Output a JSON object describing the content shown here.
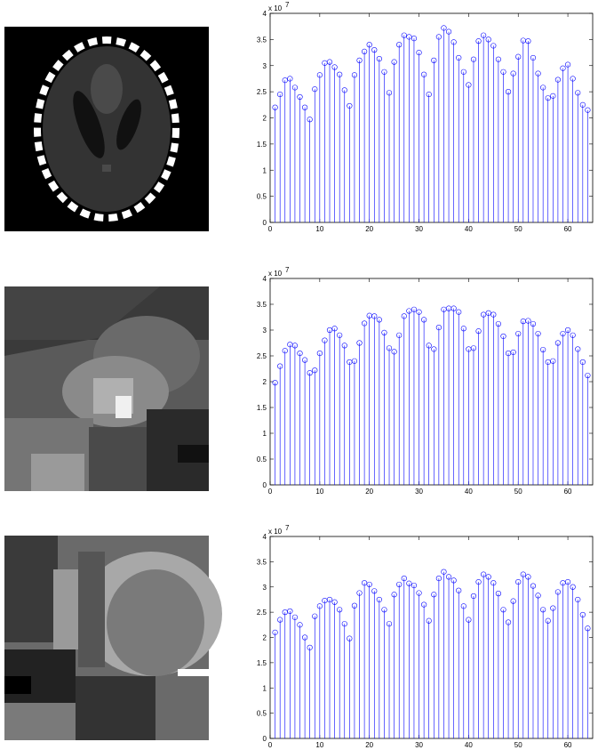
{
  "chart_data": [
    {
      "type": "stem",
      "y_scale_label": "x 10",
      "y_scale_exponent": "7",
      "color": "#0000ff",
      "x": [
        1,
        2,
        3,
        4,
        5,
        6,
        7,
        8,
        9,
        10,
        11,
        12,
        13,
        14,
        15,
        16,
        17,
        18,
        19,
        20,
        21,
        22,
        23,
        24,
        25,
        26,
        27,
        28,
        29,
        30,
        31,
        32,
        33,
        34,
        35,
        36,
        37,
        38,
        39,
        40,
        41,
        42,
        43,
        44,
        45,
        46,
        47,
        48,
        49,
        50,
        51,
        52,
        53,
        54,
        55,
        56,
        57,
        58,
        59,
        60,
        61,
        62,
        63,
        64
      ],
      "values": [
        2.2,
        2.45,
        2.72,
        2.75,
        2.58,
        2.4,
        2.2,
        1.97,
        2.55,
        2.82,
        3.05,
        3.07,
        2.97,
        2.83,
        2.53,
        2.23,
        2.82,
        3.1,
        3.27,
        3.4,
        3.3,
        3.13,
        2.88,
        2.48,
        3.07,
        3.4,
        3.58,
        3.55,
        3.52,
        3.25,
        2.83,
        2.45,
        3.1,
        3.55,
        3.72,
        3.65,
        3.45,
        3.15,
        2.88,
        2.63,
        3.12,
        3.47,
        3.58,
        3.5,
        3.38,
        3.12,
        2.88,
        2.5,
        2.85,
        3.17,
        3.48,
        3.47,
        3.15,
        2.85,
        2.58,
        2.38,
        2.42,
        2.73,
        2.95,
        3.02,
        2.75,
        2.48,
        2.25,
        2.15
      ],
      "xlim": [
        0,
        65
      ],
      "xticks": [
        0,
        10,
        20,
        30,
        40,
        50,
        60
      ],
      "ylim": [
        0,
        4
      ],
      "yticks": [
        0,
        0.5,
        1,
        1.5,
        2,
        2.5,
        3,
        3.5,
        4
      ]
    },
    {
      "type": "stem",
      "y_scale_label": "x 10",
      "y_scale_exponent": "7",
      "color": "#0000ff",
      "x": [
        1,
        2,
        3,
        4,
        5,
        6,
        7,
        8,
        9,
        10,
        11,
        12,
        13,
        14,
        15,
        16,
        17,
        18,
        19,
        20,
        21,
        22,
        23,
        24,
        25,
        26,
        27,
        28,
        29,
        30,
        31,
        32,
        33,
        34,
        35,
        36,
        37,
        38,
        39,
        40,
        41,
        42,
        43,
        44,
        45,
        46,
        47,
        48,
        49,
        50,
        51,
        52,
        53,
        54,
        55,
        56,
        57,
        58,
        59,
        60,
        61,
        62,
        63,
        64
      ],
      "values": [
        1.98,
        2.3,
        2.6,
        2.72,
        2.7,
        2.55,
        2.42,
        2.17,
        2.22,
        2.55,
        2.8,
        3.0,
        3.03,
        2.9,
        2.7,
        2.38,
        2.4,
        2.75,
        3.13,
        3.28,
        3.27,
        3.2,
        2.95,
        2.65,
        2.58,
        2.9,
        3.27,
        3.37,
        3.4,
        3.35,
        3.2,
        2.7,
        2.63,
        3.05,
        3.4,
        3.42,
        3.42,
        3.35,
        3.03,
        2.63,
        2.65,
        2.98,
        3.3,
        3.33,
        3.3,
        3.12,
        2.88,
        2.55,
        2.57,
        2.93,
        3.17,
        3.18,
        3.12,
        2.93,
        2.62,
        2.38,
        2.4,
        2.75,
        2.93,
        3.0,
        2.9,
        2.63,
        2.38,
        2.12
      ],
      "xlim": [
        0,
        65
      ],
      "xticks": [
        0,
        10,
        20,
        30,
        40,
        50,
        60
      ],
      "ylim": [
        0,
        4
      ],
      "yticks": [
        0,
        0.5,
        1,
        1.5,
        2,
        2.5,
        3,
        3.5,
        4
      ]
    },
    {
      "type": "stem",
      "y_scale_label": "x 10",
      "y_scale_exponent": "7",
      "color": "#0000ff",
      "x": [
        1,
        2,
        3,
        4,
        5,
        6,
        7,
        8,
        9,
        10,
        11,
        12,
        13,
        14,
        15,
        16,
        17,
        18,
        19,
        20,
        21,
        22,
        23,
        24,
        25,
        26,
        27,
        28,
        29,
        30,
        31,
        32,
        33,
        34,
        35,
        36,
        37,
        38,
        39,
        40,
        41,
        42,
        43,
        44,
        45,
        46,
        47,
        48,
        49,
        50,
        51,
        52,
        53,
        54,
        55,
        56,
        57,
        58,
        59,
        60,
        61,
        62,
        63,
        64
      ],
      "values": [
        2.1,
        2.35,
        2.5,
        2.52,
        2.4,
        2.25,
        2.0,
        1.8,
        2.42,
        2.62,
        2.73,
        2.75,
        2.7,
        2.55,
        2.27,
        1.98,
        2.63,
        2.88,
        3.08,
        3.05,
        2.92,
        2.75,
        2.55,
        2.27,
        2.85,
        3.05,
        3.17,
        3.07,
        3.03,
        2.88,
        2.65,
        2.33,
        2.85,
        3.17,
        3.3,
        3.2,
        3.13,
        2.93,
        2.62,
        2.35,
        2.82,
        3.1,
        3.25,
        3.2,
        3.08,
        2.87,
        2.55,
        2.3,
        2.72,
        3.1,
        3.25,
        3.2,
        3.02,
        2.83,
        2.55,
        2.33,
        2.58,
        2.9,
        3.08,
        3.1,
        3.0,
        2.75,
        2.45,
        2.18
      ],
      "xlim": [
        0,
        65
      ],
      "xticks": [
        0,
        10,
        20,
        30,
        40,
        50,
        60
      ],
      "ylim": [
        0,
        4
      ],
      "yticks": [
        0,
        0.5,
        1,
        1.5,
        2,
        2.5,
        3,
        3.5,
        4
      ]
    }
  ]
}
